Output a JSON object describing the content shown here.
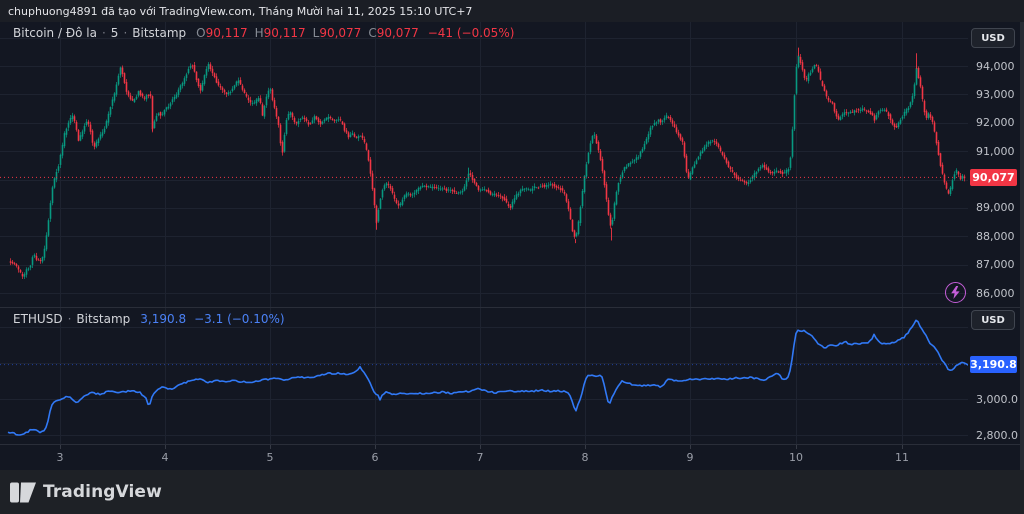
{
  "attribution": "chuphuong4891 đã tạo với TradingView.com, Tháng Mười hai 11, 2025 15:10 UTC+7",
  "footer": {
    "logo_text": "TradingView"
  },
  "colors": {
    "background": "#131722",
    "topbar_bg": "#1b1e25",
    "footer_bg": "#1e2126",
    "grid": "#1e2330",
    "separator": "#2a2e39",
    "up": "#089981",
    "down": "#f23645",
    "eth_line": "#3179f6",
    "btc_badge_bg": "#f23645",
    "eth_badge_bg": "#2962ff",
    "axis_text": "#bfc2c9",
    "time_text": "#9a9ea8",
    "legend_text": "#d3d5da",
    "ohlc_letter": "#868b94",
    "stream_icon": "#c45ed8"
  },
  "btc_pane": {
    "legend": {
      "symbol": "Bitcoin / Đô la",
      "sep": "·",
      "interval": "5",
      "exchange": "Bitstamp",
      "open_label": "O",
      "open": "90,117",
      "high_label": "H",
      "high": "90,117",
      "low_label": "L",
      "low": "90,077",
      "close_label": "C",
      "close": "90,077",
      "change": "−41 (−0.05%)"
    },
    "currency_button": "USD",
    "price_ticks": [
      {
        "label": "94,000",
        "value": 94000
      },
      {
        "label": "93,000",
        "value": 93000
      },
      {
        "label": "92,000",
        "value": 92000
      },
      {
        "label": "91,000",
        "value": 91000
      },
      {
        "label": "89,000",
        "value": 89000
      },
      {
        "label": "88,000",
        "value": 88000
      },
      {
        "label": "87,000",
        "value": 87000
      },
      {
        "label": "86,000",
        "value": 86000
      }
    ],
    "last_price": {
      "label": "90,077",
      "value": 90077
    }
  },
  "eth_pane": {
    "legend": {
      "symbol": "ETHUSD",
      "sep": "·",
      "exchange": "Bitstamp",
      "price": "3,190.8",
      "change": "−3.1 (−0.10%)"
    },
    "currency_button": "USD",
    "price_ticks": [
      {
        "label": "3,000.0",
        "value": 3000
      },
      {
        "label": "2,800.0",
        "value": 2800
      }
    ],
    "last_price": {
      "label": "3,190.8",
      "value": 3190.8
    }
  },
  "time_axis": {
    "ticks": [
      {
        "label": "3",
        "x": 60
      },
      {
        "label": "4",
        "x": 165
      },
      {
        "label": "5",
        "x": 270
      },
      {
        "label": "6",
        "x": 375
      },
      {
        "label": "7",
        "x": 480
      },
      {
        "label": "8",
        "x": 585
      },
      {
        "label": "9",
        "x": 690
      },
      {
        "label": "10",
        "x": 796
      },
      {
        "label": "11",
        "x": 902
      }
    ]
  },
  "chart_data": [
    {
      "type": "candlestick",
      "symbol": "Bitcoin / Đô la",
      "interval": "5",
      "exchange": "Bitstamp",
      "ohlc": {
        "open": 90117,
        "high": 90117,
        "low": 90077,
        "close": 90077,
        "change": -41,
        "change_pct": -0.05
      },
      "last": 90077,
      "ylim": [
        85507,
        95551
      ],
      "x_range": [
        8,
        965
      ],
      "y_gridlines": [
        86000,
        87000,
        88000,
        89000,
        90000,
        91000,
        92000,
        93000,
        94000,
        95000
      ],
      "up_color": "#089981",
      "down_color": "#f23645",
      "spikes": [
        [
          152,
          91700,
          "d"
        ],
        [
          376,
          88230,
          "d"
        ],
        [
          468,
          90420,
          "u"
        ],
        [
          575,
          87760,
          "d"
        ],
        [
          611,
          87850,
          "d"
        ],
        [
          798,
          94650,
          "d"
        ],
        [
          916,
          94450,
          "d"
        ]
      ],
      "waypoints": [
        8,
        87150,
        12,
        87050,
        16,
        86950,
        20,
        86700,
        23,
        86550,
        26,
        86800,
        30,
        87000,
        33,
        87400,
        36,
        87200,
        40,
        87100,
        43,
        87300,
        46,
        88000,
        49,
        88900,
        52,
        89700,
        55,
        90200,
        58,
        90500,
        61,
        91000,
        64,
        91600,
        67,
        91900,
        70,
        92150,
        72,
        92250,
        75,
        91950,
        78,
        91400,
        81,
        91600,
        84,
        91900,
        87,
        92100,
        90,
        91700,
        93,
        91100,
        96,
        91300,
        99,
        91500,
        102,
        91650,
        105,
        91900,
        108,
        92300,
        111,
        92700,
        114,
        93000,
        117,
        93500,
        120,
        93950,
        123,
        93600,
        126,
        93100,
        129,
        92850,
        132,
        92750,
        135,
        92850,
        138,
        93100,
        141,
        92950,
        144,
        92850,
        147,
        93000,
        150,
        92950,
        152,
        91800,
        155,
        92200,
        158,
        92350,
        161,
        92250,
        164,
        92450,
        167,
        92550,
        170,
        92700,
        173,
        92850,
        176,
        93000,
        179,
        93250,
        182,
        93400,
        185,
        93650,
        188,
        93900,
        191,
        94100,
        194,
        93800,
        197,
        93400,
        200,
        93150,
        202,
        93400,
        205,
        93800,
        208,
        94050,
        211,
        93800,
        214,
        93600,
        217,
        93350,
        220,
        93250,
        223,
        93150,
        226,
        93000,
        229,
        93050,
        232,
        93200,
        235,
        93400,
        238,
        93500,
        241,
        93250,
        244,
        93050,
        247,
        92850,
        250,
        92700,
        253,
        92650,
        256,
        92800,
        259,
        92900,
        262,
        92250,
        264,
        92600,
        266,
        92900,
        268,
        93100,
        270,
        93150,
        272,
        92800,
        274,
        92500,
        276,
        92200,
        278,
        91900,
        280,
        91300,
        282,
        90950,
        284,
        91600,
        286,
        92100,
        288,
        92300,
        290,
        92350,
        293,
        92100,
        296,
        91950,
        299,
        92150,
        302,
        92200,
        305,
        92100,
        308,
        91950,
        311,
        92000,
        314,
        92200,
        317,
        92100,
        320,
        91950,
        323,
        92050,
        326,
        92150,
        329,
        92200,
        332,
        92100,
        335,
        92050,
        338,
        92100,
        341,
        92050,
        344,
        91750,
        348,
        91500,
        352,
        91600,
        356,
        91450,
        360,
        91550,
        364,
        91300,
        367,
        90900,
        370,
        90200,
        373,
        89400,
        376,
        88500,
        379,
        89200,
        383,
        89800,
        387,
        89850,
        391,
        89600,
        395,
        89200,
        399,
        89050,
        403,
        89400,
        407,
        89500,
        411,
        89450,
        415,
        89600,
        419,
        89700,
        423,
        89800,
        427,
        89750,
        431,
        89700,
        435,
        89750,
        439,
        89650,
        443,
        89700,
        447,
        89600,
        451,
        89650,
        455,
        89500,
        459,
        89550,
        463,
        89650,
        467,
        90100,
        469,
        90300,
        471,
        90050,
        475,
        89800,
        479,
        89600,
        483,
        89650,
        487,
        89600,
        491,
        89450,
        495,
        89500,
        499,
        89400,
        503,
        89350,
        507,
        89100,
        510,
        89000,
        513,
        89300,
        517,
        89500,
        521,
        89650,
        525,
        89700,
        529,
        89600,
        533,
        89750,
        537,
        89700,
        541,
        89800,
        545,
        89750,
        549,
        89850,
        553,
        89800,
        557,
        89700,
        561,
        89650,
        565,
        89400,
        569,
        88800,
        572,
        88200,
        575,
        87900,
        578,
        88500,
        581,
        89300,
        584,
        90100,
        587,
        90800,
        590,
        91300,
        593,
        91700,
        596,
        91300,
        599,
        90900,
        602,
        90300,
        605,
        89600,
        607,
        89000,
        609,
        88500,
        611,
        88300,
        613,
        88900,
        615,
        89400,
        618,
        89900,
        621,
        90200,
        624,
        90400,
        627,
        90500,
        630,
        90600,
        634,
        90700,
        638,
        90800,
        642,
        91100,
        646,
        91400,
        650,
        91800,
        654,
        92000,
        658,
        92100,
        661,
        92000,
        664,
        92200,
        667,
        92250,
        670,
        92100,
        673,
        91900,
        676,
        91700,
        679,
        91500,
        682,
        91300,
        685,
        90600,
        687,
        89950,
        690,
        90200,
        693,
        90500,
        696,
        90700,
        699,
        90900,
        702,
        91050,
        705,
        91200,
        708,
        91300,
        711,
        91400,
        714,
        91350,
        717,
        91200,
        720,
        91000,
        723,
        90800,
        726,
        90600,
        729,
        90400,
        732,
        90250,
        735,
        90100,
        738,
        90000,
        741,
        89950,
        744,
        89900,
        747,
        89850,
        750,
        90000,
        753,
        90150,
        756,
        90300,
        759,
        90450,
        762,
        90500,
        765,
        90400,
        768,
        90300,
        771,
        90200,
        774,
        90250,
        777,
        90300,
        780,
        90250,
        783,
        90200,
        786,
        90300,
        788,
        90400,
        790,
        90800,
        792,
        91800,
        794,
        93000,
        796,
        94000,
        798,
        94350,
        800,
        94100,
        802,
        93900,
        804,
        93600,
        806,
        93500,
        808,
        93700,
        810,
        93800,
        812,
        93900,
        814,
        94050,
        816,
        94000,
        818,
        93800,
        820,
        93500,
        823,
        93200,
        826,
        92900,
        829,
        92750,
        832,
        92700,
        835,
        92300,
        838,
        92100,
        841,
        92250,
        844,
        92400,
        847,
        92300,
        850,
        92350,
        853,
        92400,
        856,
        92450,
        859,
        92400,
        862,
        92500,
        865,
        92450,
        868,
        92400,
        871,
        92300,
        874,
        92100,
        877,
        92350,
        880,
        92450,
        883,
        92500,
        886,
        92400,
        889,
        92200,
        892,
        91950,
        895,
        91800,
        898,
        92000,
        901,
        92200,
        904,
        92350,
        907,
        92500,
        910,
        92700,
        913,
        93100,
        916,
        93900,
        918,
        93600,
        920,
        93300,
        922,
        92800,
        924,
        92400,
        926,
        92200,
        928,
        92300,
        930,
        92200,
        932,
        92000,
        934,
        91700,
        936,
        91300,
        938,
        90900,
        940,
        90500,
        942,
        90200,
        944,
        89900,
        946,
        89650,
        948,
        89500,
        950,
        89700,
        952,
        90000,
        954,
        90200,
        956,
        90300,
        958,
        90150,
        960,
        90000,
        962,
        90100,
        964,
        90077
      ]
    },
    {
      "type": "line",
      "symbol": "ETHUSD",
      "exchange": "Bitstamp",
      "last": 3190.8,
      "change": -3.1,
      "change_pct": -0.1,
      "ylim": [
        2750,
        3505.6
      ],
      "x_range": [
        8,
        970
      ],
      "y_gridlines": [
        2800,
        3000,
        3200,
        3400
      ],
      "color": "#3179f6",
      "waypoints": [
        8,
        2815,
        14,
        2812,
        18,
        2798,
        24,
        2810,
        28,
        2818,
        33,
        2836,
        37,
        2822,
        41,
        2815,
        45,
        2825,
        48,
        2880,
        51,
        2960,
        54,
        2985,
        58,
        2992,
        62,
        2996,
        66,
        3014,
        70,
        3008,
        73,
        2998,
        76,
        2980,
        80,
        2996,
        84,
        3012,
        88,
        3026,
        92,
        3034,
        96,
        3030,
        100,
        3026,
        104,
        3032,
        108,
        3046,
        112,
        3040,
        116,
        3034,
        120,
        3040,
        124,
        3038,
        128,
        3046,
        132,
        3048,
        136,
        3042,
        140,
        3036,
        144,
        3014,
        147,
        2998,
        149,
        2946,
        151,
        3004,
        154,
        3030,
        158,
        3056,
        162,
        3064,
        166,
        3060,
        170,
        3056,
        174,
        3062,
        180,
        3080,
        188,
        3096,
        195,
        3105,
        200,
        3112,
        204,
        3100,
        208,
        3092,
        214,
        3098,
        220,
        3102,
        226,
        3096,
        232,
        3104,
        238,
        3100,
        244,
        3094,
        250,
        3088,
        256,
        3096,
        262,
        3106,
        268,
        3110,
        274,
        3114,
        280,
        3110,
        286,
        3106,
        292,
        3118,
        298,
        3124,
        304,
        3120,
        310,
        3118,
        316,
        3128,
        322,
        3136,
        328,
        3142,
        334,
        3140,
        340,
        3144,
        345,
        3136,
        350,
        3142,
        355,
        3148,
        360,
        3180,
        363,
        3150,
        366,
        3130,
        369,
        3100,
        372,
        3060,
        375,
        3030,
        378,
        3020,
        380,
        2995,
        383,
        3030,
        387,
        3038,
        391,
        3028,
        395,
        3026,
        400,
        3030,
        405,
        3028,
        410,
        3032,
        415,
        3030,
        420,
        3034,
        425,
        3030,
        430,
        3028,
        436,
        3036,
        442,
        3038,
        448,
        3034,
        454,
        3032,
        460,
        3036,
        466,
        3040,
        472,
        3046,
        478,
        3055,
        484,
        3048,
        490,
        3040,
        496,
        3036,
        502,
        3038,
        508,
        3042,
        514,
        3044,
        520,
        3042,
        526,
        3046,
        532,
        3044,
        538,
        3046,
        544,
        3048,
        550,
        3044,
        556,
        3046,
        562,
        3044,
        568,
        3038,
        571,
        3004,
        574,
        2952,
        576,
        2936,
        578,
        2972,
        581,
        3010,
        584,
        3078,
        587,
        3126,
        590,
        3130,
        594,
        3127,
        598,
        3132,
        602,
        3124,
        605,
        3060,
        608,
        2990,
        610,
        2982,
        613,
        3018,
        616,
        3052,
        619,
        3076,
        622,
        3100,
        626,
        3092,
        630,
        3084,
        635,
        3074,
        640,
        3078,
        645,
        3072,
        650,
        3076,
        655,
        3082,
        660,
        3068,
        665,
        3088,
        668,
        3114,
        672,
        3108,
        676,
        3102,
        680,
        3098,
        685,
        3106,
        690,
        3112,
        695,
        3108,
        700,
        3110,
        706,
        3112,
        712,
        3111,
        718,
        3115,
        724,
        3112,
        730,
        3112,
        736,
        3118,
        742,
        3117,
        748,
        3120,
        754,
        3116,
        760,
        3108,
        765,
        3106,
        770,
        3120,
        774,
        3136,
        777,
        3148,
        780,
        3128,
        783,
        3106,
        786,
        3112,
        789,
        3130,
        791,
        3180,
        793,
        3260,
        795,
        3340,
        797,
        3388,
        799,
        3378,
        801,
        3374,
        804,
        3380,
        807,
        3372,
        810,
        3360,
        813,
        3342,
        816,
        3322,
        819,
        3304,
        822,
        3294,
        825,
        3286,
        828,
        3294,
        831,
        3302,
        834,
        3298,
        837,
        3296,
        840,
        3306,
        843,
        3314,
        846,
        3316,
        849,
        3308,
        852,
        3306,
        856,
        3306,
        860,
        3308,
        864,
        3312,
        868,
        3316,
        871,
        3324,
        874,
        3360,
        877,
        3330,
        880,
        3314,
        884,
        3308,
        888,
        3304,
        892,
        3312,
        896,
        3320,
        900,
        3328,
        904,
        3344,
        908,
        3370,
        911,
        3395,
        914,
        3418,
        917,
        3444,
        919,
        3420,
        921,
        3396,
        923,
        3378,
        925,
        3362,
        927,
        3340,
        929,
        3316,
        931,
        3300,
        933,
        3292,
        935,
        3286,
        937,
        3262,
        939,
        3254,
        941,
        3226,
        943,
        3212,
        945,
        3190,
        947,
        3176,
        949,
        3162,
        951,
        3158,
        953,
        3170,
        955,
        3178,
        957,
        3186,
        959,
        3192,
        961,
        3198,
        963,
        3202,
        965,
        3196,
        967,
        3194,
        970,
        3191
      ]
    }
  ]
}
